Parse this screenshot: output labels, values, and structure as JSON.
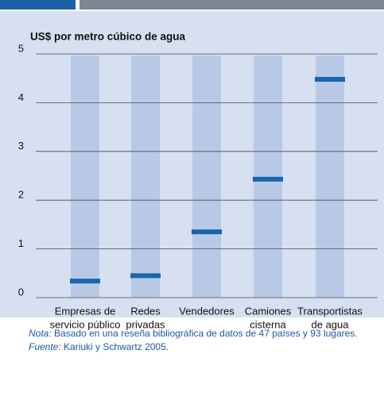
{
  "chart_data": {
    "type": "marker",
    "y_label": "US$ por metro cúbico de agua",
    "categories": [
      [
        "Empresas de",
        "servicio público"
      ],
      [
        "Redes",
        "privadas"
      ],
      [
        "Vendedores"
      ],
      [
        "Camiones",
        "cisterna"
      ],
      [
        "Transportistas",
        "de agua"
      ]
    ],
    "values": [
      0.34,
      0.45,
      1.35,
      2.43,
      4.48
    ],
    "color": "#1a64ae",
    "column_color": "#b8c9e7",
    "ylim": [
      0,
      5
    ],
    "yticks": [
      0,
      1,
      2,
      3,
      4,
      5
    ],
    "grid": true
  },
  "notes": {
    "note_label": "Nota:",
    "note": "Basado en una reseña bibliográfica de datos de 47 países y 93 lugares.",
    "source_label": "Fuente:",
    "source": "Kariuki y Schwartz 2005."
  }
}
